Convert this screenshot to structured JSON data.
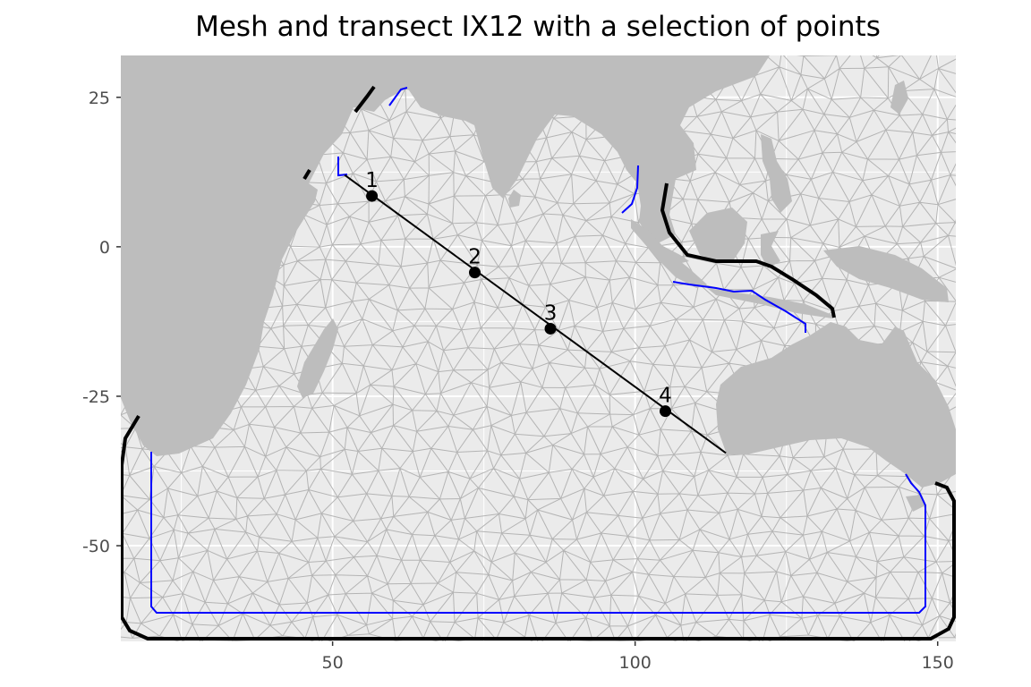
{
  "chart_data": {
    "type": "scatter",
    "title": "Mesh and transect IX12 with a selection of points",
    "xlabel": "",
    "ylabel": "",
    "xlim": [
      15,
      153
    ],
    "ylim": [
      -66,
      32
    ],
    "x_ticks": [
      50,
      100,
      150
    ],
    "y_ticks": [
      25,
      0,
      -25,
      -50
    ],
    "x_tick_labels": [
      "50",
      "100",
      "150"
    ],
    "y_tick_labels": [
      "25",
      "0",
      "-25",
      "-50"
    ],
    "grid": true,
    "legend": "none",
    "transect": {
      "start": [
        52,
        12
      ],
      "end": [
        115,
        -34.5
      ],
      "color": "#000000"
    },
    "points": [
      {
        "label": "1",
        "x": 56.5,
        "y": 8.5
      },
      {
        "label": "2",
        "x": 73.5,
        "y": -4.3
      },
      {
        "label": "3",
        "x": 86,
        "y": -13.7
      },
      {
        "label": "4",
        "x": 105,
        "y": -27.5
      }
    ],
    "colors": {
      "panel_background": "#ebebeb",
      "grid": "#ffffff",
      "land": "#bdbdbd",
      "mesh": "#b4b4b4",
      "outer_boundary": "#000000",
      "inner_boundary": "#0000ff"
    }
  }
}
